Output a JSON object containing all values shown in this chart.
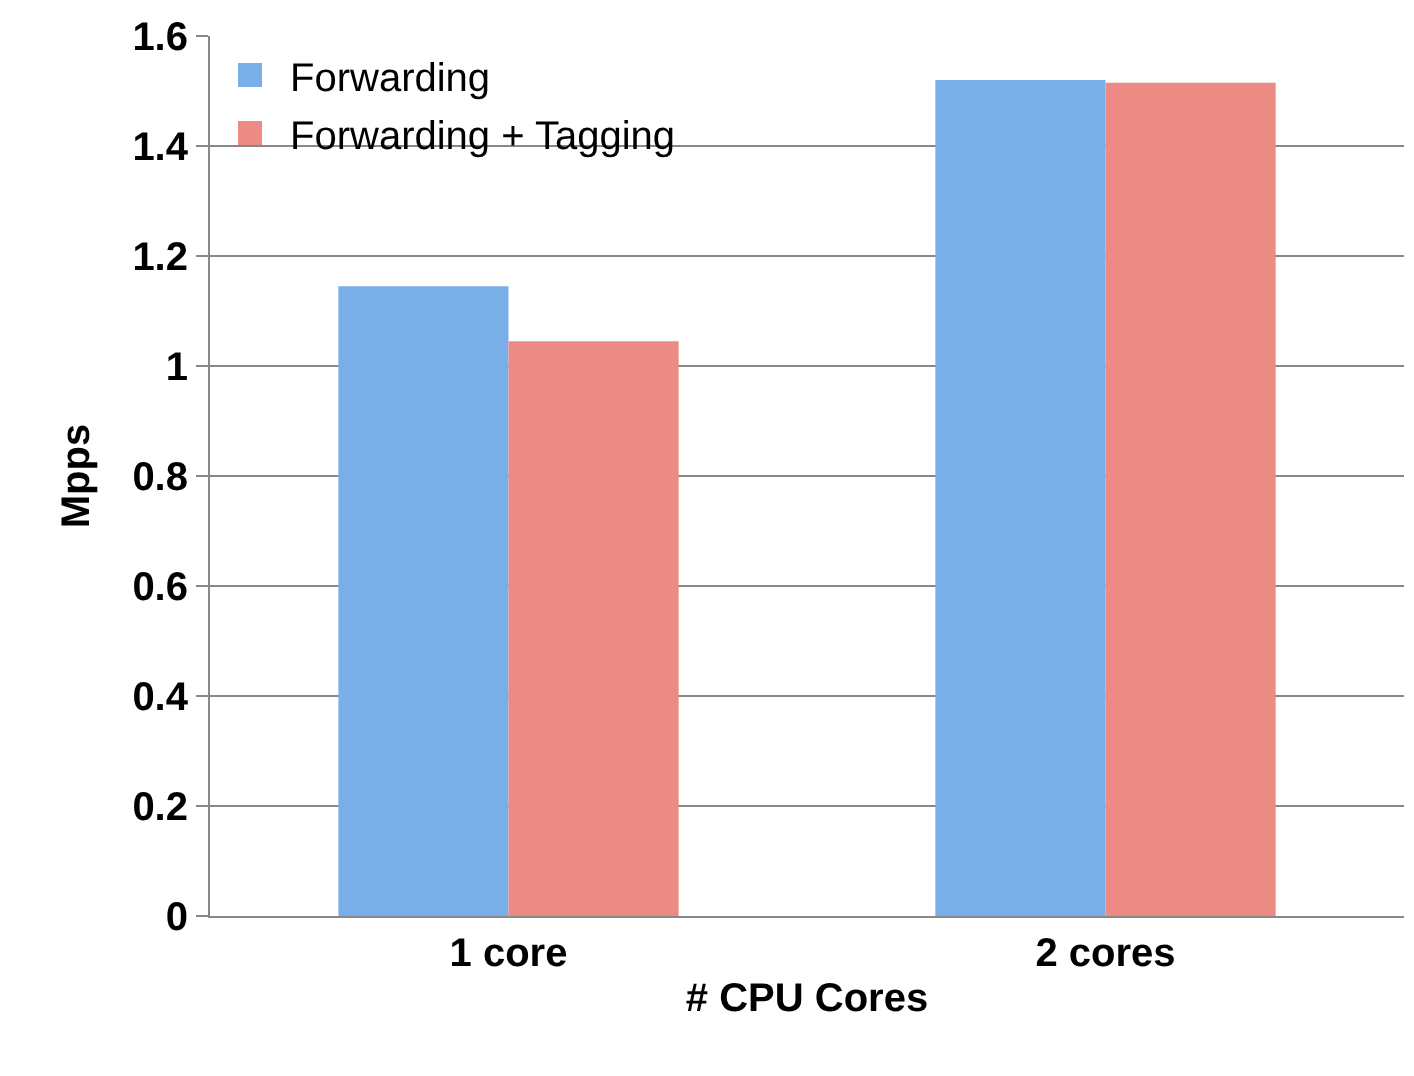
{
  "chart_data": {
    "type": "bar",
    "xlabel": "# CPU Cores",
    "ylabel": "Mpps",
    "categories": [
      "1 core",
      "2 cores"
    ],
    "series": [
      {
        "name": "Forwarding",
        "color": "#7aaee8",
        "values": [
          1.145,
          1.52
        ]
      },
      {
        "name": "Forwarding + Tagging",
        "color": "#ec8a84",
        "values": [
          1.045,
          1.515
        ]
      }
    ],
    "ylim": [
      0,
      1.6
    ],
    "yticks": [
      {
        "value": 0,
        "label": "0"
      },
      {
        "value": 0.2,
        "label": "0.2"
      },
      {
        "value": 0.4,
        "label": "0.4"
      },
      {
        "value": 0.6,
        "label": "0.6"
      },
      {
        "value": 0.8,
        "label": "0.8"
      },
      {
        "value": 1,
        "label": "1"
      },
      {
        "value": 1.2,
        "label": "1.2"
      },
      {
        "value": 1.4,
        "label": "1.4"
      },
      {
        "value": 1.6,
        "label": "1.6"
      }
    ],
    "grid": "y",
    "legend": "top left"
  }
}
